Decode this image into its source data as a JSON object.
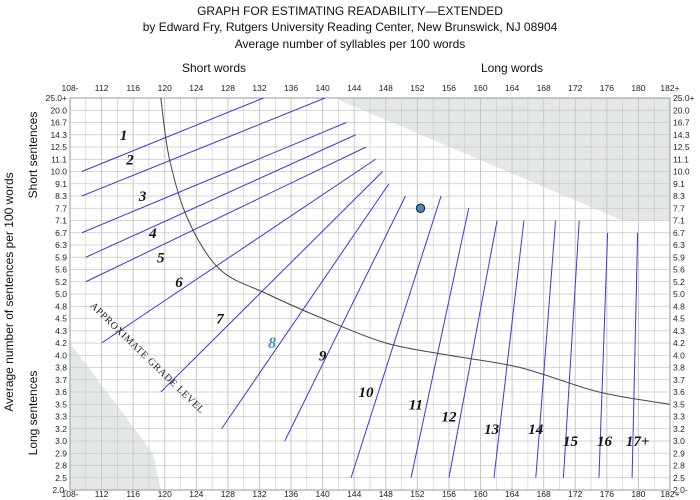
{
  "title_lines": [
    "GRAPH FOR ESTIMATING READABILITY—EXTENDED",
    "by Edward Fry, Rutgers University Reading Center, New Brunswick, NJ 08904",
    "Average number of syllables per 100 words"
  ],
  "colors": {
    "grid": "#c8c8c8",
    "shade": "#e3e7e5",
    "grade_line": "#3a3ad8",
    "divider_curve": "#444444",
    "point_fill": "#3c8cc0",
    "point_stroke": "#1a1a1a",
    "highlight_grade": "#4a90c8"
  },
  "chart_data": {
    "type": "scatter",
    "title": "GRAPH FOR ESTIMATING READABILITY—EXTENDED",
    "xlabel": "Average number of syllables per 100 words",
    "ylabel": "Average number of sentences per 100 words",
    "x_group_labels": [
      "Short words",
      "Long words"
    ],
    "y_group_labels": [
      "Short sentences",
      "Long sentences"
    ],
    "x_ticks": [
      "108-",
      "112",
      "116",
      "120",
      "124",
      "128",
      "132",
      "136",
      "140",
      "144",
      "148",
      "152",
      "156",
      "160",
      "164",
      "168",
      "172",
      "176",
      "180",
      "182+"
    ],
    "y_ticks": [
      "25.0+",
      "20.0",
      "16.7",
      "14.3",
      "12.5",
      "11.1",
      "10.0",
      "9.1",
      "8.3",
      "7.7",
      "7.1",
      "6.7",
      "6.3",
      "5.9",
      "5.6",
      "5.2",
      "5.0",
      "4.8",
      "4.5",
      "4.3",
      "4.2",
      "4.0",
      "3.8",
      "3.7",
      "3.6",
      "3.5",
      "3.3",
      "3.2",
      "3.0",
      "2.9",
      "2.8",
      "2.5",
      "2.0-"
    ],
    "xlim": [
      "108-",
      "182+"
    ],
    "ylim": [
      "2.0-",
      "25.0+"
    ],
    "grid": true,
    "grade_labels": [
      {
        "text": "1",
        "x": 114.8,
        "y": "14.3"
      },
      {
        "text": "2",
        "x": 115.6,
        "y": "11.1"
      },
      {
        "text": "3",
        "x": 117.2,
        "y": "8.3"
      },
      {
        "text": "4",
        "x": 118.5,
        "y": "6.7"
      },
      {
        "text": "5",
        "x": 119.5,
        "y": "5.9"
      },
      {
        "text": "6",
        "x": 121.8,
        "y": "5.2"
      },
      {
        "text": "7",
        "x": 127.0,
        "y": "4.5"
      },
      {
        "text": "8",
        "x": 133.6,
        "y": "4.2",
        "highlight": true
      },
      {
        "text": "9",
        "x": 140.0,
        "y": "4.0"
      },
      {
        "text": "10",
        "x": 145.5,
        "y": "3.6"
      },
      {
        "text": "11",
        "x": 151.8,
        "y": "3.5"
      },
      {
        "text": "12",
        "x": 156.0,
        "y": "3.3"
      },
      {
        "text": "13",
        "x": 161.4,
        "y": "3.2"
      },
      {
        "text": "14",
        "x": 167.0,
        "y": "3.2"
      },
      {
        "text": "15",
        "x": 171.4,
        "y": "3.0"
      },
      {
        "text": "16",
        "x": 175.7,
        "y": "3.0"
      },
      {
        "text": "17+",
        "x": 179.9,
        "y": "3.0"
      }
    ],
    "approx_label": "APPROXIMATE GRADE LEVEL",
    "grade_lines": [
      {
        "from": [
          109.5,
          "10.0"
        ],
        "to": [
          132.5,
          "25.0+"
        ]
      },
      {
        "from": [
          109.5,
          "8.3"
        ],
        "to": [
          140.3,
          "25.0+"
        ]
      },
      {
        "from": [
          109.5,
          "6.7"
        ],
        "to": [
          143.0,
          "16.7"
        ]
      },
      {
        "from": [
          110.0,
          "5.9"
        ],
        "to": [
          144.2,
          "14.3"
        ]
      },
      {
        "from": [
          110.0,
          "5.2"
        ],
        "to": [
          145.5,
          "12.5"
        ]
      },
      {
        "from": [
          112.0,
          "4.2"
        ],
        "to": [
          146.7,
          "11.1"
        ]
      },
      {
        "from": [
          119.5,
          "3.6"
        ],
        "to": [
          147.6,
          "10.0"
        ]
      },
      {
        "from": [
          127.2,
          "3.2"
        ],
        "to": [
          148.4,
          "9.1"
        ]
      },
      {
        "from": [
          135.2,
          "3.0"
        ],
        "to": [
          150.5,
          "8.3"
        ]
      },
      {
        "from": [
          143.6,
          "2.5"
        ],
        "to": [
          155.0,
          "8.3"
        ]
      },
      {
        "from": [
          151.2,
          "2.5"
        ],
        "to": [
          158.5,
          "7.7"
        ]
      },
      {
        "from": [
          156.0,
          "2.5"
        ],
        "to": [
          162.1,
          "7.1"
        ]
      },
      {
        "from": [
          161.7,
          "2.5"
        ],
        "to": [
          165.5,
          "7.1"
        ]
      },
      {
        "from": [
          167.0,
          "2.5"
        ],
        "to": [
          169.5,
          "7.1"
        ]
      },
      {
        "from": [
          170.5,
          "2.5"
        ],
        "to": [
          172.5,
          "7.1"
        ]
      },
      {
        "from": [
          175.0,
          "2.5"
        ],
        "to": [
          176.1,
          "6.7"
        ]
      },
      {
        "from": [
          179.2,
          "2.5"
        ],
        "to": [
          179.9,
          "6.7"
        ]
      }
    ],
    "divider_curve": [
      [
        119.5,
        "25.0+"
      ],
      [
        120.6,
        "11.1"
      ],
      [
        123.0,
        "7.1"
      ],
      [
        127.0,
        "5.6"
      ],
      [
        133.0,
        "5.0"
      ],
      [
        140.0,
        "4.5"
      ],
      [
        148.0,
        "4.2"
      ],
      [
        156.0,
        "4.0"
      ],
      [
        165.0,
        "3.8"
      ],
      [
        175.0,
        "3.6"
      ],
      [
        182.0,
        "3.5"
      ]
    ],
    "shaded_regions": [
      {
        "name": "invalid-top-right",
        "points": [
          [
            141.5,
            "25.0+"
          ],
          [
            182.0,
            "25.0+"
          ],
          [
            182.0,
            "7.1"
          ],
          [
            178.0,
            "7.1"
          ],
          [
            172.0,
            "7.3"
          ],
          [
            166.0,
            "7.8"
          ],
          [
            162.0,
            "8.2"
          ],
          [
            158.0,
            "8.8"
          ],
          [
            154.0,
            "10.0"
          ],
          [
            150.0,
            "12.0"
          ],
          [
            146.5,
            "14.3"
          ],
          [
            144.0,
            "17.5"
          ]
        ]
      },
      {
        "name": "invalid-bottom-left",
        "points": [
          [
            108.0,
            "4.2"
          ],
          [
            108.0,
            "2.0-"
          ],
          [
            119.5,
            "2.0-"
          ],
          [
            118.5,
            "2.9"
          ],
          [
            116.0,
            "3.4"
          ],
          [
            113.0,
            "3.8"
          ]
        ]
      }
    ],
    "points": [
      {
        "x": 152.4,
        "y": "7.7"
      }
    ]
  }
}
